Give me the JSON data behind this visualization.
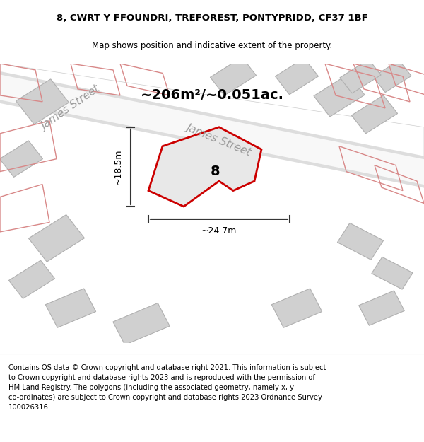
{
  "title_line1": "8, CWRT Y FFOUNDRI, TREFOREST, PONTYPRIDD, CF37 1BF",
  "title_line2": "Map shows position and indicative extent of the property.",
  "area_label": "~206m²/~0.051ac.",
  "plot_number": "8",
  "width_label": "~24.7m",
  "height_label": "~18.5m",
  "footer_text": "Contains OS data © Crown copyright and database right 2021. This information is subject\nto Crown copyright and database rights 2023 and is reproduced with the permission of\nHM Land Registry. The polygons (including the associated geometry, namely x, y\nco-ordinates) are subject to Crown copyright and database rights 2023 Ordnance Survey\n100026316.",
  "bg_color": "#f0f0f0",
  "map_bg": "#f5f5f5",
  "road_color": "#ffffff",
  "building_color": "#d8d8d8",
  "building_edge": "#b0b0b0",
  "road_marking_color": "#e8c8c8",
  "property_color": "#e8e8e8",
  "property_edge": "#cc0000",
  "dim_line_color": "#333333",
  "street_label_color": "#888888",
  "street_label_1": "James Street",
  "street_label_2": "James Street"
}
